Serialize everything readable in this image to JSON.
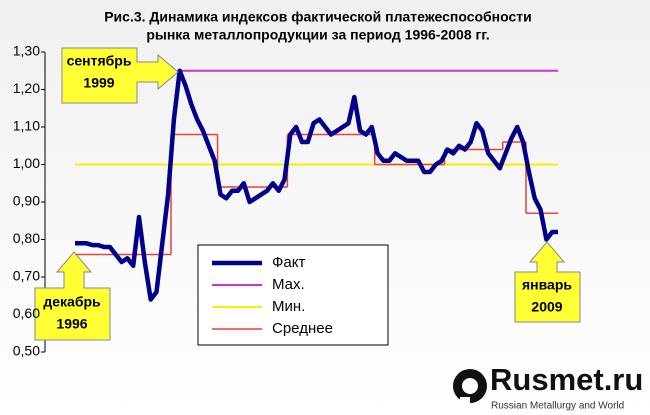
{
  "chart_data": {
    "type": "line",
    "title": [
      "Рис.3. Динамика индексов фактической платежеспособности",
      "рынка  металлопродукции за период 1996-2008 гг."
    ],
    "ylim": [
      0.5,
      1.3
    ],
    "yticks": [
      {
        "value": 0.5,
        "label": "0,50"
      },
      {
        "value": 0.6,
        "label": "0,60"
      },
      {
        "value": 0.7,
        "label": "0,70"
      },
      {
        "value": 0.8,
        "label": "0,80"
      },
      {
        "value": 0.9,
        "label": "0,90"
      },
      {
        "value": 1.0,
        "label": "1,00"
      },
      {
        "value": 1.1,
        "label": "1,10"
      },
      {
        "value": 1.2,
        "label": "1,20"
      },
      {
        "value": 1.3,
        "label": "1,30"
      }
    ],
    "series": [
      {
        "name": "Факт",
        "color": "#00008b",
        "style": "line",
        "values": [
          0.79,
          0.79,
          0.79,
          0.785,
          0.785,
          0.78,
          0.78,
          0.76,
          0.74,
          0.75,
          0.73,
          0.86,
          0.74,
          0.64,
          0.66,
          0.79,
          0.92,
          1.12,
          1.25,
          1.21,
          1.16,
          1.12,
          1.09,
          1.05,
          1.01,
          0.92,
          0.91,
          0.93,
          0.93,
          0.95,
          0.9,
          0.91,
          0.92,
          0.93,
          0.95,
          0.93,
          0.96,
          1.08,
          1.1,
          1.06,
          1.06,
          1.11,
          1.12,
          1.1,
          1.08,
          1.09,
          1.1,
          1.11,
          1.18,
          1.09,
          1.08,
          1.1,
          1.03,
          1.01,
          1.01,
          1.03,
          1.02,
          1.01,
          1.01,
          1.01,
          0.98,
          0.98,
          1.0,
          1.01,
          1.04,
          1.03,
          1.05,
          1.04,
          1.06,
          1.11,
          1.09,
          1.03,
          1.01,
          0.99,
          1.03,
          1.07,
          1.1,
          1.06,
          0.98,
          0.91,
          0.88,
          0.8,
          0.82,
          0.82
        ]
      },
      {
        "name": "Мах.",
        "color": "#cc33cc",
        "style": "line",
        "values": [
          null,
          null,
          null,
          null,
          null,
          null,
          null,
          null,
          null,
          null,
          null,
          null,
          null,
          null,
          null,
          null,
          null,
          null,
          1.25,
          1.25,
          1.25,
          1.25,
          1.25,
          1.25,
          1.25,
          1.25,
          1.25,
          1.25,
          1.25,
          1.25,
          1.25,
          1.25,
          1.25,
          1.25,
          1.25,
          1.25,
          1.25,
          1.25,
          1.25,
          1.25,
          1.25,
          1.25,
          1.25,
          1.25,
          1.25,
          1.25,
          1.25,
          1.25,
          1.25,
          1.25,
          1.25,
          1.25,
          1.25,
          1.25,
          1.25,
          1.25,
          1.25,
          1.25,
          1.25,
          1.25,
          1.25,
          1.25,
          1.25,
          1.25,
          1.25,
          1.25,
          1.25,
          1.25,
          1.25,
          1.25,
          1.25,
          1.25,
          1.25,
          1.25,
          1.25,
          1.25,
          1.25,
          1.25,
          1.25,
          1.25,
          1.25,
          1.25,
          1.25,
          1.25
        ]
      },
      {
        "name": "Мин.",
        "color": "#f2f200",
        "style": "line",
        "values": [
          1.0,
          1.0,
          1.0,
          1.0,
          1.0,
          1.0,
          1.0,
          1.0,
          1.0,
          1.0,
          1.0,
          1.0,
          1.0,
          1.0,
          1.0,
          1.0,
          1.0,
          1.0,
          1.0,
          1.0,
          1.0,
          1.0,
          1.0,
          1.0,
          1.0,
          1.0,
          1.0,
          1.0,
          1.0,
          1.0,
          1.0,
          1.0,
          1.0,
          1.0,
          1.0,
          1.0,
          1.0,
          1.0,
          1.0,
          1.0,
          1.0,
          1.0,
          1.0,
          1.0,
          1.0,
          1.0,
          1.0,
          1.0,
          1.0,
          1.0,
          1.0,
          1.0,
          1.0,
          1.0,
          1.0,
          1.0,
          1.0,
          1.0,
          1.0,
          1.0,
          1.0,
          1.0,
          1.0,
          1.0,
          1.0,
          1.0,
          1.0,
          1.0,
          1.0,
          1.0,
          1.0,
          1.0,
          1.0,
          1.0,
          1.0,
          1.0,
          1.0,
          1.0,
          1.0,
          1.0,
          1.0,
          1.0,
          1.0,
          1.0
        ]
      },
      {
        "name": "Среднее",
        "color": "#e8413a",
        "style": "step",
        "values": [
          0.76,
          0.76,
          0.76,
          0.76,
          0.76,
          0.76,
          0.76,
          0.76,
          0.76,
          0.76,
          0.76,
          0.76,
          0.76,
          0.76,
          0.76,
          0.76,
          0.76,
          1.08,
          1.08,
          1.08,
          1.08,
          1.08,
          1.08,
          1.08,
          1.08,
          0.94,
          0.94,
          0.94,
          0.94,
          0.94,
          0.94,
          0.94,
          0.94,
          0.94,
          0.94,
          0.94,
          0.94,
          1.08,
          1.08,
          1.08,
          1.08,
          1.08,
          1.08,
          1.08,
          1.08,
          1.08,
          1.08,
          1.08,
          1.08,
          1.08,
          1.08,
          1.08,
          1.0,
          1.0,
          1.0,
          1.0,
          1.0,
          1.0,
          1.0,
          1.0,
          1.0,
          1.0,
          1.0,
          1.0,
          1.04,
          1.04,
          1.04,
          1.04,
          1.04,
          1.04,
          1.04,
          1.04,
          1.04,
          1.04,
          1.06,
          1.06,
          1.06,
          1.06,
          0.87,
          0.87,
          0.87,
          0.87,
          0.87,
          0.87
        ]
      }
    ],
    "annotations": [
      [
        "сентябрь",
        "1999"
      ],
      [
        "декабрь",
        "1996"
      ],
      [
        "январь",
        "2009"
      ]
    ],
    "logo": {
      "name": "Rusmet.ru",
      "tagline": "Russian Metallurgy and World"
    }
  }
}
